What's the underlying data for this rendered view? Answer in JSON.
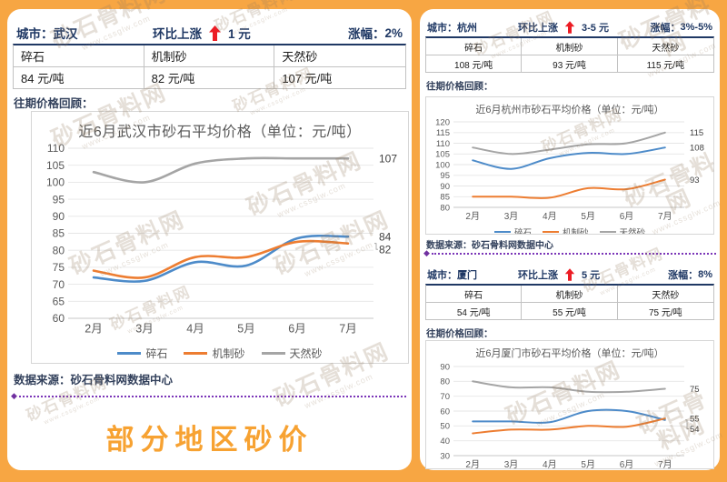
{
  "watermark": {
    "text": "砂石骨料网",
    "url": "www.cssglw.com"
  },
  "footer": {
    "title": "部分地区砂价"
  },
  "sections": [
    {
      "city_label": "城市：",
      "city": "武汉",
      "momentum_label": "环比上涨",
      "momentum_value": "1 元",
      "rate_label": "涨幅：",
      "rate_value": "2%",
      "review_label": "往期价格回顾：",
      "materials": [
        {
          "name": "碎石",
          "price": "84 元/吨"
        },
        {
          "name": "机制砂",
          "price": "82 元/吨"
        },
        {
          "name": "天然砂",
          "price": "107 元/吨"
        }
      ],
      "source": "数据来源：砂石骨料网数据中心"
    },
    {
      "city_label": "城市：",
      "city": "杭州",
      "momentum_label": "环比上涨",
      "momentum_value": "3-5 元",
      "rate_label": "涨幅：",
      "rate_value": "3%-5%",
      "review_label": "往期价格回顾：",
      "materials": [
        {
          "name": "碎石",
          "price": "108 元/吨"
        },
        {
          "name": "机制砂",
          "price": "93 元/吨"
        },
        {
          "name": "天然砂",
          "price": "115 元/吨"
        }
      ],
      "source": "数据来源：砂石骨料网数据中心"
    },
    {
      "city_label": "城市：",
      "city": "厦门",
      "momentum_label": "环比上涨",
      "momentum_value": "5 元",
      "rate_label": "涨幅：",
      "rate_value": "8%",
      "review_label": "往期价格回顾：",
      "materials": [
        {
          "name": "碎石",
          "price": "54 元/吨"
        },
        {
          "name": "机制砂",
          "price": "55 元/吨"
        },
        {
          "name": "天然砂",
          "price": "75 元/吨"
        }
      ],
      "source": ""
    }
  ],
  "chart_data": [
    {
      "type": "line",
      "title": "近6月武汉市砂石平均价格（单位：元/吨）",
      "xlabel": "",
      "ylabel": "",
      "categories": [
        "2月",
        "3月",
        "4月",
        "5月",
        "6月",
        "7月"
      ],
      "ylim": [
        60,
        110
      ],
      "ystep": 5,
      "grid": true,
      "legend": true,
      "legend_position": "bottom",
      "series": [
        {
          "name": "碎石",
          "color": "#4D8BC9",
          "values": [
            72,
            71,
            76.5,
            75.5,
            83.5,
            84
          ],
          "end_label": "84"
        },
        {
          "name": "机制砂",
          "color": "#ED7D31",
          "values": [
            74,
            72,
            78,
            78,
            82.5,
            82
          ],
          "end_label": "82"
        },
        {
          "name": "天然砂",
          "color": "#A5A5A5",
          "values": [
            103,
            100,
            105.5,
            107,
            107,
            107
          ],
          "end_label": "107"
        }
      ]
    },
    {
      "type": "line",
      "title": "近6月杭州市砂石平均价格（单位：元/吨）",
      "xlabel": "",
      "ylabel": "",
      "categories": [
        "2月",
        "3月",
        "4月",
        "5月",
        "6月",
        "7月"
      ],
      "ylim": [
        80,
        120
      ],
      "ystep": 5,
      "grid": true,
      "legend": true,
      "legend_position": "bottom",
      "series": [
        {
          "name": "碎石",
          "color": "#4D8BC9",
          "values": [
            102,
            98,
            103,
            105.5,
            105,
            108
          ],
          "end_label": "108"
        },
        {
          "name": "机制砂",
          "color": "#ED7D31",
          "values": [
            85,
            85,
            84.5,
            89,
            88.5,
            93
          ],
          "end_label": "93"
        },
        {
          "name": "天然砂",
          "color": "#A5A5A5",
          "values": [
            108,
            105,
            107,
            109.5,
            110,
            115
          ],
          "end_label": "115"
        }
      ]
    },
    {
      "type": "line",
      "title": "近6月厦门市砂石平均价格（单位：元/吨）",
      "xlabel": "",
      "ylabel": "",
      "categories": [
        "2月",
        "3月",
        "4月",
        "5月",
        "6月",
        "7月"
      ],
      "ylim": [
        30,
        90
      ],
      "ystep": 10,
      "grid": true,
      "legend": false,
      "legend_position": "none",
      "series": [
        {
          "name": "碎石",
          "color": "#4D8BC9",
          "values": [
            53,
            53,
            52.5,
            60,
            60,
            54
          ],
          "end_label": "54"
        },
        {
          "name": "机制砂",
          "color": "#ED7D31",
          "values": [
            45,
            47.5,
            47.5,
            50,
            49.5,
            55
          ],
          "end_label": "55"
        },
        {
          "name": "天然砂",
          "color": "#A5A5A5",
          "values": [
            80,
            76,
            76,
            73,
            73,
            75
          ],
          "end_label": "75"
        }
      ]
    }
  ]
}
